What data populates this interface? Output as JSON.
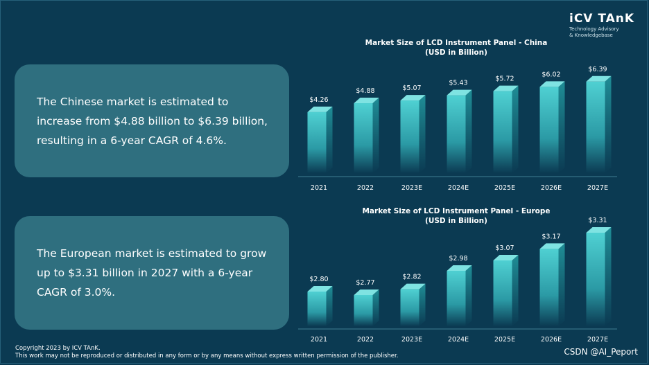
{
  "logo": {
    "name": "iCV TAnK",
    "tagline_line1": "Technology Advisory",
    "tagline_line2": "& Knowledgebase"
  },
  "panels": {
    "china_text": "The Chinese market is estimated to increase from $4.88 billion to $6.39 billion, resulting in a 6-year CAGR of 4.6%.",
    "europe_text": "The European market is estimated to grow up to $3.31 billion in 2027 with a 6-year CAGR of 3.0%."
  },
  "footer": {
    "copyright": "Copyright  2023 by ICV TAnK.",
    "notice": "This work may not be reproduced or distributed in any form or by any means without express written permission of the publisher."
  },
  "watermark": "CSDN @AI_Peport",
  "colors": {
    "background": "#0b3a52",
    "panel": "#2f6f7f",
    "bar_front_top": "#4fd0d2",
    "bar_front_bottom": "#0b3a52",
    "bar_side": "#1f8d96",
    "bar_top": "#7fe3e2"
  },
  "chart_data": [
    {
      "type": "bar",
      "title": "Market Size of LCD Instrument Panel - China",
      "subtitle": "(USD in Billion)",
      "categories": [
        "2021",
        "2022",
        "2023E",
        "2024E",
        "2025E",
        "2026E",
        "2027E"
      ],
      "values": [
        4.26,
        4.88,
        5.07,
        5.43,
        5.72,
        6.02,
        6.39
      ],
      "value_labels": [
        "$4.26",
        "$4.88",
        "$5.07",
        "$5.43",
        "$5.72",
        "$6.02",
        "$6.39"
      ],
      "ylim": [
        0,
        7.2
      ],
      "grid": false
    },
    {
      "type": "bar",
      "title": "Market Size of LCD Instrument Panel - Europe",
      "subtitle": "(USD in Billion)",
      "categories": [
        "2021",
        "2022",
        "2023E",
        "2024E",
        "2025E",
        "2026E",
        "2027E"
      ],
      "values": [
        2.8,
        2.77,
        2.82,
        2.98,
        3.07,
        3.17,
        3.31
      ],
      "value_labels": [
        "$2.80",
        "$2.77",
        "$2.82",
        "$2.98",
        "$3.07",
        "$3.17",
        "$3.31"
      ],
      "ylim": [
        2.5,
        3.34
      ],
      "grid": false
    }
  ]
}
